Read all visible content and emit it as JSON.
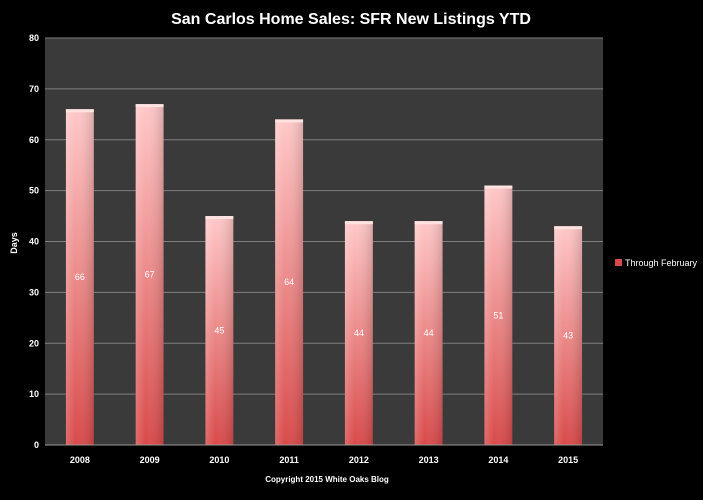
{
  "chart_data": {
    "type": "bar",
    "title": "San Carlos Home Sales:  SFR New Listings YTD",
    "ylabel": "Days",
    "xlabel": "",
    "categories": [
      "2008",
      "2009",
      "2010",
      "2011",
      "2012",
      "2013",
      "2014",
      "2015"
    ],
    "series": [
      {
        "name": "Through February",
        "values": [
          66,
          67,
          45,
          64,
          44,
          44,
          51,
          43
        ]
      }
    ],
    "ylim": [
      0,
      80
    ],
    "yticks": [
      0,
      10,
      20,
      30,
      40,
      50,
      60,
      70,
      80
    ],
    "grid": true,
    "legend_position": "right",
    "footer": "Copyright 2015 White  Oaks Blog",
    "colors": {
      "background": "#000000",
      "plot_area": "#3a3a3a",
      "gridline": "#7f7f7f",
      "bar_top": "#ffc8c8",
      "bar_bottom": "#d94a4a",
      "text": "#ffffff"
    }
  }
}
